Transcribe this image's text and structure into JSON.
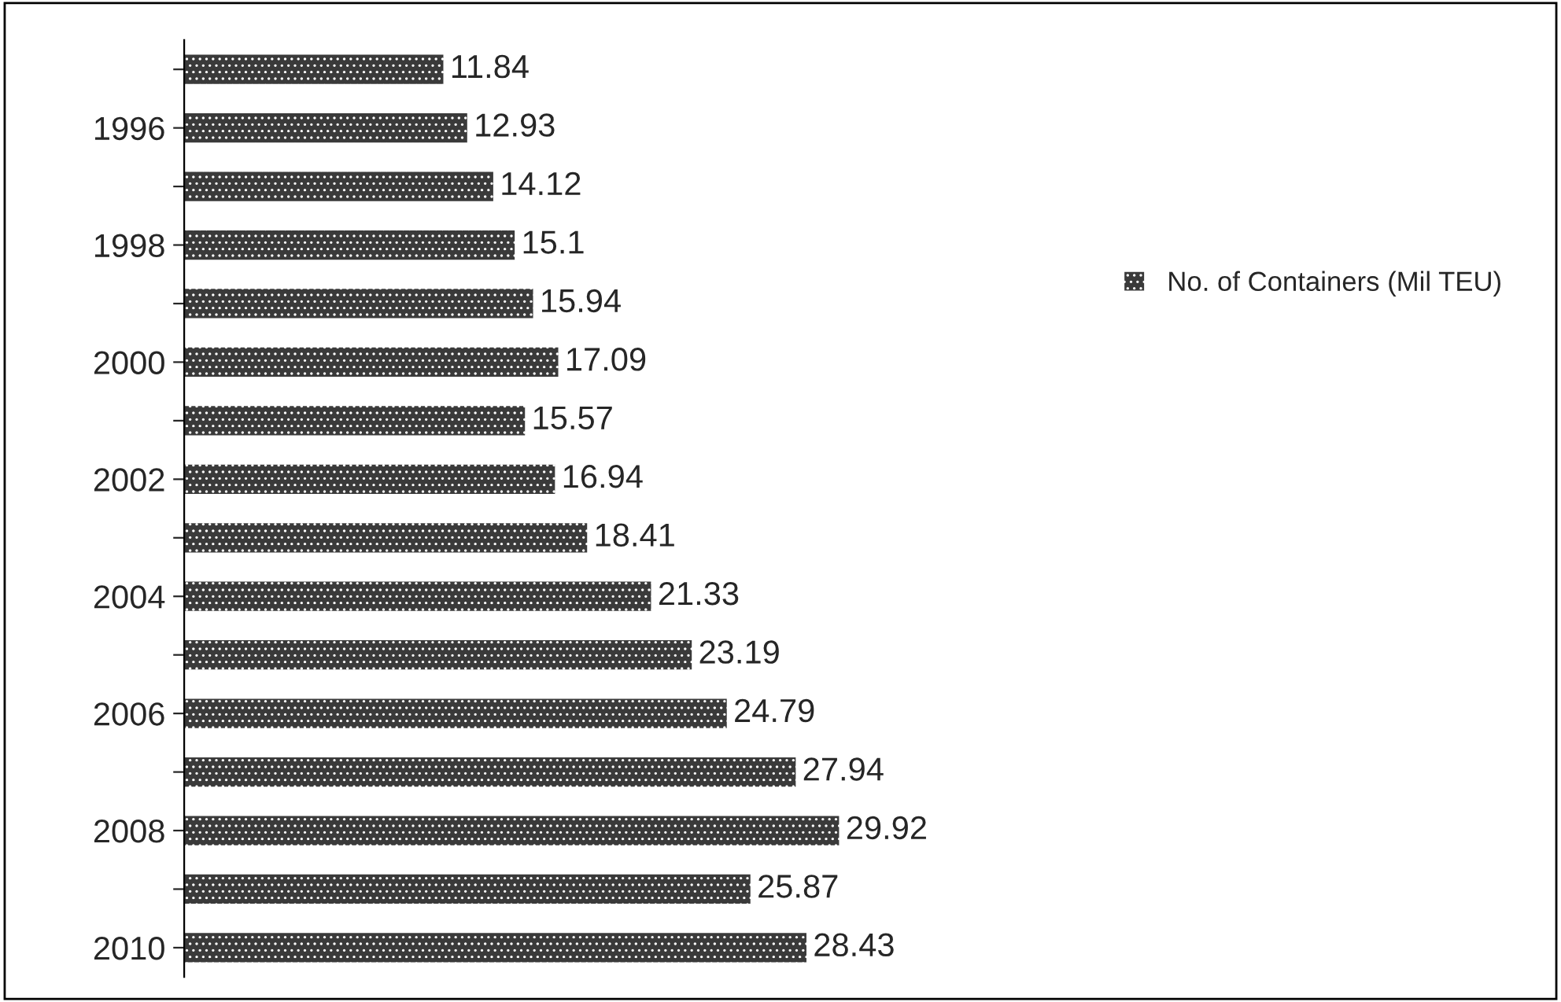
{
  "chart_data": {
    "type": "bar",
    "orientation": "horizontal",
    "categories": [
      null,
      "1996",
      null,
      "1998",
      null,
      "2000",
      null,
      "2002",
      null,
      "2004",
      null,
      "2006",
      null,
      "2008",
      null,
      "2010"
    ],
    "series": [
      {
        "name": "No. of Containers (Mil TEU)",
        "color": "#3a3a3a",
        "values": [
          11.84,
          12.93,
          14.12,
          15.1,
          15.94,
          17.09,
          15.57,
          16.94,
          18.41,
          21.33,
          23.19,
          24.79,
          27.94,
          29.92,
          25.87,
          28.43
        ]
      }
    ],
    "data_labels": true,
    "legend": "right",
    "grid": false
  }
}
